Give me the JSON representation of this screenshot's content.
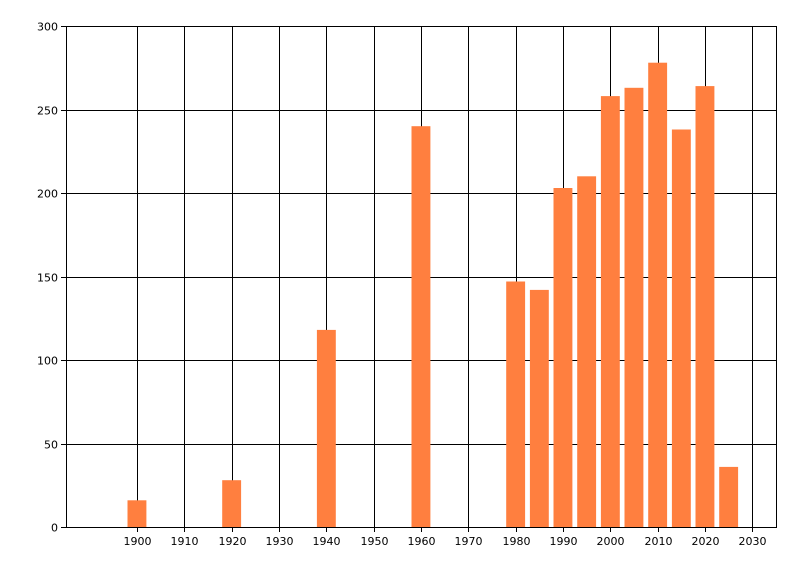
{
  "chart_data": {
    "type": "bar",
    "x": [
      1900,
      1920,
      1940,
      1960,
      1980,
      1985,
      1990,
      1995,
      2000,
      2005,
      2010,
      2015,
      2020,
      2025
    ],
    "values": [
      16,
      28,
      118,
      240,
      147,
      142,
      203,
      210,
      258,
      263,
      278,
      238,
      264,
      36
    ],
    "xlim": [
      1885,
      2035
    ],
    "ylim": [
      0,
      300
    ],
    "xticks": [
      1900,
      1910,
      1920,
      1930,
      1940,
      1950,
      1960,
      1970,
      1980,
      1990,
      2000,
      2010,
      2020,
      2030
    ],
    "yticks": [
      0,
      50,
      100,
      150,
      200,
      250,
      300
    ],
    "grid": true,
    "legend": "none",
    "title": "",
    "xlabel": "",
    "ylabel": "",
    "colors": {
      "bar": "#ff7f3f",
      "grid": "#000000",
      "axis": "#000000",
      "background": "#ffffff"
    }
  }
}
